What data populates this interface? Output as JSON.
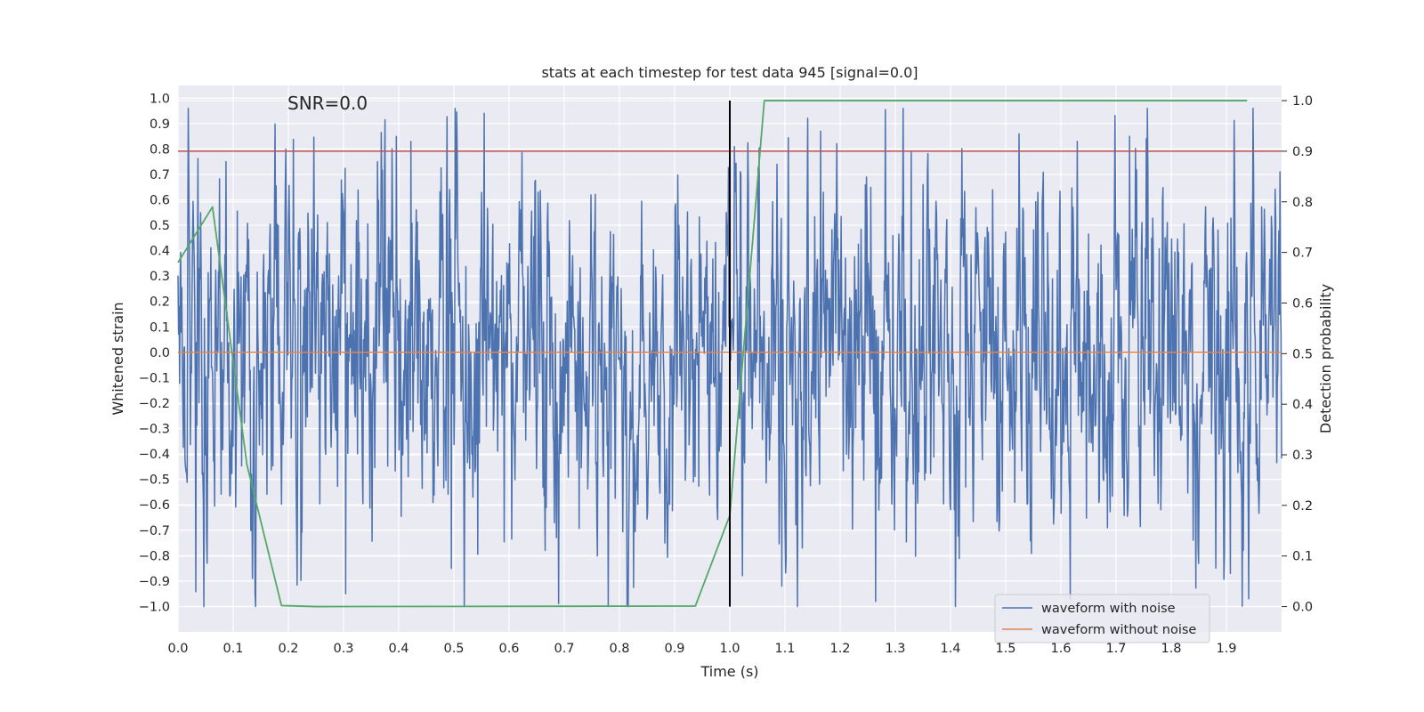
{
  "chart_data": {
    "type": "line",
    "title": "stats at each timestep for test data 945 [signal=0.0]",
    "xlabel": "Time (s)",
    "ylabel": "Whitened strain",
    "y2label": "Detection probability",
    "annotation": "SNR=0.0",
    "xlim": [
      0.0,
      2.0
    ],
    "ylim": [
      -1.1,
      1.05
    ],
    "y2lim": [
      -0.05,
      1.03
    ],
    "xticks": [
      "0.0",
      "0.1",
      "0.2",
      "0.3",
      "0.4",
      "0.5",
      "0.6",
      "0.7",
      "0.8",
      "0.9",
      "1.0",
      "1.1",
      "1.2",
      "1.3",
      "1.4",
      "1.5",
      "1.6",
      "1.7",
      "1.8",
      "1.9"
    ],
    "yticks": [
      "1.0",
      "0.9",
      "0.8",
      "0.7",
      "0.6",
      "0.5",
      "0.4",
      "0.3",
      "0.2",
      "0.1",
      "0.0",
      "−0.1",
      "−0.2",
      "−0.3",
      "−0.4",
      "−0.5",
      "−0.6",
      "−0.7",
      "−0.8",
      "−0.9",
      "−1.0"
    ],
    "y2ticks": [
      "1.0",
      "0.9",
      "0.8",
      "0.7",
      "0.6",
      "0.5",
      "0.4",
      "0.3",
      "0.2",
      "0.1",
      "0.0"
    ],
    "grid": true,
    "legend_position": "lower-right",
    "background_color": "#eaeaf2",
    "series": [
      {
        "name": "waveform with noise",
        "color": "#4c72b0",
        "axis": "left",
        "sample_count": 2048,
        "approx_range": [
          -1.0,
          0.96
        ],
        "notable_points": [
          {
            "x": 0.053,
            "y": -0.83
          },
          {
            "x": 0.087,
            "y": 0.75
          },
          {
            "x": 0.304,
            "y": -0.95
          },
          {
            "x": 0.422,
            "y": 0.83
          },
          {
            "x": 0.495,
            "y": -0.85
          },
          {
            "x": 0.502,
            "y": 0.96
          },
          {
            "x": 0.555,
            "y": 0.94
          },
          {
            "x": 1.094,
            "y": -0.92
          },
          {
            "x": 1.165,
            "y": 0.87
          },
          {
            "x": 1.264,
            "y": -0.98
          },
          {
            "x": 1.617,
            "y": -0.97
          },
          {
            "x": 1.63,
            "y": 0.83
          },
          {
            "x": 1.724,
            "y": 0.85
          },
          {
            "x": 1.755,
            "y": 0.84
          },
          {
            "x": 1.907,
            "y": -0.87
          },
          {
            "x": 1.94,
            "y": -0.97
          }
        ]
      },
      {
        "name": "waveform without noise",
        "color": "#dd8452",
        "axis": "left",
        "x": [
          0.0,
          2.0
        ],
        "y": [
          0.0,
          0.0
        ]
      },
      {
        "color": "#55a868",
        "axis": "right",
        "x": [
          0.0,
          0.0625,
          0.125,
          0.1875,
          0.25,
          0.9375,
          1.0,
          1.0625,
          1.9375
        ],
        "y": [
          0.68,
          0.79,
          0.28,
          0.002,
          0.0,
          0.001,
          0.18,
          1.0,
          1.0
        ]
      }
    ],
    "reference_lines": [
      {
        "orientation": "horizontal",
        "axis": "right",
        "value": 0.9,
        "color": "#c44e52"
      },
      {
        "orientation": "vertical",
        "value": 1.0,
        "color": "#000000",
        "y2_range": [
          0.0,
          1.0
        ]
      }
    ]
  }
}
